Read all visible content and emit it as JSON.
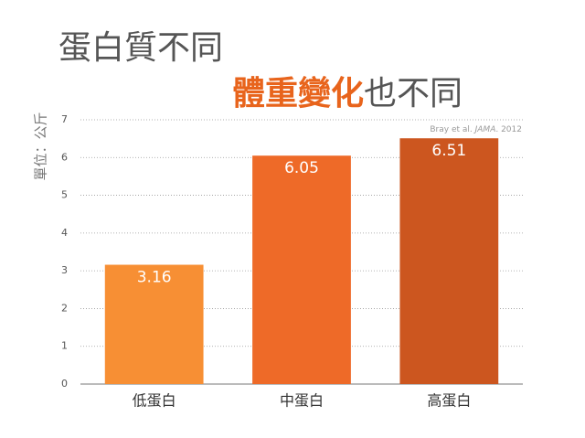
{
  "chart_data": {
    "type": "bar",
    "title": "蛋白質不同",
    "subtitle": [
      {
        "text": "體重變化",
        "color": "#e8641c"
      },
      {
        "text": "也不同",
        "color": "#555555"
      }
    ],
    "y_label": "單位：公斤",
    "source": [
      "Bray et al. ",
      "JAMA",
      ". 2012"
    ],
    "categories": [
      "低蛋白",
      "中蛋白",
      "高蛋白"
    ],
    "values": [
      3.16,
      6.05,
      6.51
    ],
    "colors": [
      "#f78f34",
      "#ee6a28",
      "#cc561f"
    ],
    "ylim": [
      0,
      7
    ],
    "yticks": [
      0,
      1,
      2,
      3,
      4,
      5,
      6,
      7
    ],
    "grid": true
  }
}
